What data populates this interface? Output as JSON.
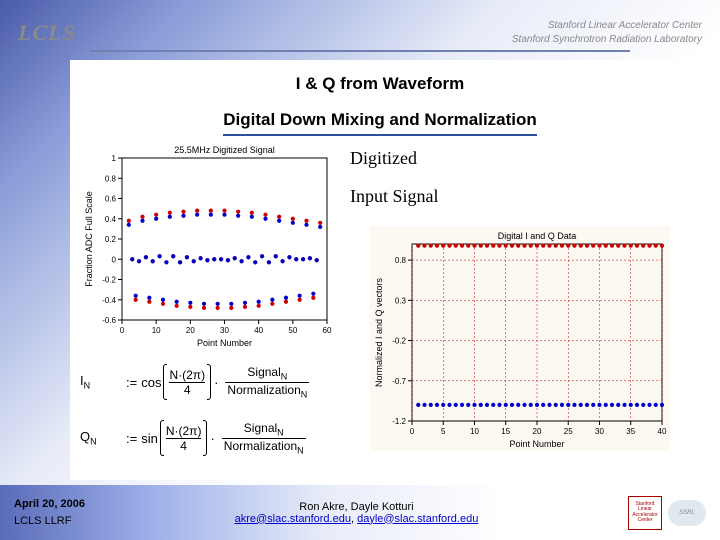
{
  "header": {
    "logo_text": "LCLS",
    "org_line1": "Stanford Linear Accelerator Center",
    "org_line2": "Stanford Synchrotron Radiation Laboratory"
  },
  "title": {
    "line1": "I & Q from Waveform",
    "line2": "Digital Down Mixing and Normalization"
  },
  "labels": {
    "digitized": "Digitized",
    "input_signal": "Input Signal"
  },
  "chart1": {
    "type": "scatter",
    "title": "25.5MHz Digitized Signal",
    "title_fontsize": 9,
    "xlabel": "Point Number",
    "ylabel": "Fraction ADC Full Scale",
    "label_fontsize": 9,
    "xlim": [
      0,
      60
    ],
    "xtick_step": 10,
    "ylim": [
      -0.6,
      1.0
    ],
    "ytick_step": 0.2,
    "tick_fontsize": 8,
    "marker": "circle",
    "marker_size": 3,
    "background_color": "#ffffff",
    "axis_color": "#000000",
    "series": [
      {
        "color": "#cc0000",
        "x": [
          2,
          3,
          4,
          5,
          6,
          7,
          8,
          9,
          10,
          11,
          12,
          13,
          14,
          15,
          16,
          17,
          18,
          19,
          20,
          21,
          22,
          23,
          24,
          25,
          26,
          27,
          28,
          29,
          30,
          31,
          32,
          33,
          34,
          35,
          36,
          37,
          38,
          39,
          40,
          41,
          42,
          43,
          44,
          45,
          46,
          47,
          48,
          49,
          50,
          51,
          52,
          53,
          54,
          55,
          56,
          57,
          58
        ],
        "y": [
          0.38,
          0.0,
          -0.4,
          -0.02,
          0.42,
          0.02,
          -0.42,
          -0.02,
          0.44,
          0.03,
          -0.44,
          -0.03,
          0.46,
          0.03,
          -0.46,
          -0.03,
          0.47,
          0.02,
          -0.47,
          -0.02,
          0.48,
          0.01,
          -0.48,
          -0.01,
          0.48,
          0.0,
          -0.48,
          0.0,
          0.48,
          -0.01,
          -0.48,
          0.01,
          0.47,
          -0.02,
          -0.47,
          0.02,
          0.46,
          -0.03,
          -0.46,
          0.03,
          0.44,
          -0.03,
          -0.44,
          0.03,
          0.42,
          -0.02,
          -0.42,
          0.02,
          0.4,
          0.0,
          -0.4,
          0.0,
          0.38,
          0.01,
          -0.38,
          -0.01,
          0.36
        ]
      },
      {
        "color": "#0000cc",
        "x": [
          2,
          3,
          4,
          5,
          6,
          7,
          8,
          9,
          10,
          11,
          12,
          13,
          14,
          15,
          16,
          17,
          18,
          19,
          20,
          21,
          22,
          23,
          24,
          25,
          26,
          27,
          28,
          29,
          30,
          31,
          32,
          33,
          34,
          35,
          36,
          37,
          38,
          39,
          40,
          41,
          42,
          43,
          44,
          45,
          46,
          47,
          48,
          49,
          50,
          51,
          52,
          53,
          54,
          55,
          56,
          57,
          58
        ],
        "y": [
          0.34,
          0.0,
          -0.36,
          -0.02,
          0.38,
          0.02,
          -0.38,
          -0.02,
          0.4,
          0.03,
          -0.4,
          -0.03,
          0.42,
          0.03,
          -0.42,
          -0.03,
          0.43,
          0.02,
          -0.43,
          -0.02,
          0.44,
          0.01,
          -0.44,
          -0.01,
          0.44,
          0.0,
          -0.44,
          0.0,
          0.44,
          -0.01,
          -0.44,
          0.01,
          0.43,
          -0.02,
          -0.43,
          0.02,
          0.42,
          -0.03,
          -0.42,
          0.03,
          0.4,
          -0.03,
          -0.4,
          0.03,
          0.38,
          -0.02,
          -0.38,
          0.02,
          0.36,
          0.0,
          -0.36,
          0.0,
          0.34,
          0.01,
          -0.34,
          -0.01,
          0.32
        ]
      }
    ]
  },
  "chart2": {
    "type": "scatter",
    "title": "Digital I and Q Data",
    "title_fontsize": 9,
    "xlabel": "Point Number",
    "ylabel": "Normalized I and Q vectors",
    "label_fontsize": 9,
    "xlim": [
      0,
      40
    ],
    "xtick_step": 5,
    "ylim": [
      -1.2,
      1.0
    ],
    "ytick_step": 0.5,
    "tick_fontsize": 8,
    "marker": "circle",
    "marker_size": 3,
    "grid_color": "#cc0000",
    "background_color": "#fbf9f2",
    "axis_color": "#000000",
    "series": [
      {
        "color": "#cc0000",
        "x": [
          1,
          2,
          3,
          4,
          5,
          6,
          7,
          8,
          9,
          10,
          11,
          12,
          13,
          14,
          15,
          16,
          17,
          18,
          19,
          20,
          21,
          22,
          23,
          24,
          25,
          26,
          27,
          28,
          29,
          30,
          31,
          32,
          33,
          34,
          35,
          36,
          37,
          38,
          39,
          40
        ],
        "y": [
          0.98,
          0.98,
          0.98,
          0.98,
          0.98,
          0.98,
          0.98,
          0.98,
          0.98,
          0.98,
          0.98,
          0.98,
          0.98,
          0.98,
          0.98,
          0.98,
          0.98,
          0.98,
          0.98,
          0.98,
          0.98,
          0.98,
          0.98,
          0.98,
          0.98,
          0.98,
          0.98,
          0.98,
          0.98,
          0.98,
          0.98,
          0.98,
          0.98,
          0.98,
          0.98,
          0.98,
          0.98,
          0.98,
          0.98,
          0.98
        ]
      },
      {
        "color": "#0000cc",
        "x": [
          1,
          2,
          3,
          4,
          5,
          6,
          7,
          8,
          9,
          10,
          11,
          12,
          13,
          14,
          15,
          16,
          17,
          18,
          19,
          20,
          21,
          22,
          23,
          24,
          25,
          26,
          27,
          28,
          29,
          30,
          31,
          32,
          33,
          34,
          35,
          36,
          37,
          38,
          39,
          40
        ],
        "y": [
          -1.0,
          -1.0,
          -1.0,
          -1.0,
          -1.0,
          -1.0,
          -1.0,
          -1.0,
          -1.0,
          -1.0,
          -1.0,
          -1.0,
          -1.0,
          -1.0,
          -1.0,
          -1.0,
          -1.0,
          -1.0,
          -1.0,
          -1.0,
          -1.0,
          -1.0,
          -1.0,
          -1.0,
          -1.0,
          -1.0,
          -1.0,
          -1.0,
          -1.0,
          -1.0,
          -1.0,
          -1.0,
          -1.0,
          -1.0,
          -1.0,
          -1.0,
          -1.0,
          -1.0,
          -1.0,
          -1.0
        ]
      }
    ]
  },
  "equations": {
    "I": {
      "lhs": "I",
      "sub": "N",
      "func": "cos",
      "num": "N·(2π)",
      "den": "4",
      "frac_num": "Signal",
      "frac_num_sub": "N",
      "frac_den": "Normalization",
      "frac_den_sub": "N"
    },
    "Q": {
      "lhs": "Q",
      "sub": "N",
      "func": "sin",
      "num": "N·(2π)",
      "den": "4",
      "frac_num": "Signal",
      "frac_num_sub": "N",
      "frac_den": "Normalization",
      "frac_den_sub": "N"
    }
  },
  "footer": {
    "date": "April 20, 2006",
    "project": "LCLS LLRF",
    "authors": "Ron Akre, Dayle Kotturi",
    "email1": "akre@slac.stanford.edu",
    "email2": "dayle@slac.stanford.edu",
    "badge1_l1": "Stanford",
    "badge1_l2": "Linear",
    "badge1_l3": "Accelerator",
    "badge1_l4": "Center",
    "badge2": "SSRL"
  }
}
